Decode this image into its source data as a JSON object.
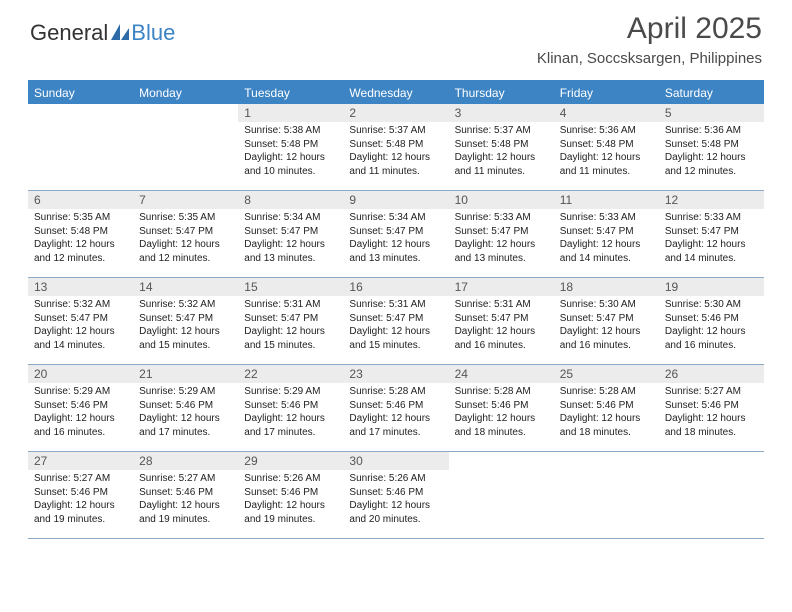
{
  "brand": {
    "part1": "General",
    "part2": "Blue"
  },
  "title": "April 2025",
  "location": "Klinan, Soccsksargen, Philippines",
  "colors": {
    "header_bg": "#3d84c4",
    "header_text": "#ffffff",
    "daynum_bg": "#ececec",
    "divider": "#8aa8c8",
    "body_text": "#222222",
    "title_text": "#4a4a4a"
  },
  "dayHeaders": [
    "Sunday",
    "Monday",
    "Tuesday",
    "Wednesday",
    "Thursday",
    "Friday",
    "Saturday"
  ],
  "weeks": [
    [
      {
        "n": "",
        "sr": "",
        "ss": "",
        "dl": ""
      },
      {
        "n": "",
        "sr": "",
        "ss": "",
        "dl": ""
      },
      {
        "n": "1",
        "sr": "Sunrise: 5:38 AM",
        "ss": "Sunset: 5:48 PM",
        "dl": "Daylight: 12 hours and 10 minutes."
      },
      {
        "n": "2",
        "sr": "Sunrise: 5:37 AM",
        "ss": "Sunset: 5:48 PM",
        "dl": "Daylight: 12 hours and 11 minutes."
      },
      {
        "n": "3",
        "sr": "Sunrise: 5:37 AM",
        "ss": "Sunset: 5:48 PM",
        "dl": "Daylight: 12 hours and 11 minutes."
      },
      {
        "n": "4",
        "sr": "Sunrise: 5:36 AM",
        "ss": "Sunset: 5:48 PM",
        "dl": "Daylight: 12 hours and 11 minutes."
      },
      {
        "n": "5",
        "sr": "Sunrise: 5:36 AM",
        "ss": "Sunset: 5:48 PM",
        "dl": "Daylight: 12 hours and 12 minutes."
      }
    ],
    [
      {
        "n": "6",
        "sr": "Sunrise: 5:35 AM",
        "ss": "Sunset: 5:48 PM",
        "dl": "Daylight: 12 hours and 12 minutes."
      },
      {
        "n": "7",
        "sr": "Sunrise: 5:35 AM",
        "ss": "Sunset: 5:47 PM",
        "dl": "Daylight: 12 hours and 12 minutes."
      },
      {
        "n": "8",
        "sr": "Sunrise: 5:34 AM",
        "ss": "Sunset: 5:47 PM",
        "dl": "Daylight: 12 hours and 13 minutes."
      },
      {
        "n": "9",
        "sr": "Sunrise: 5:34 AM",
        "ss": "Sunset: 5:47 PM",
        "dl": "Daylight: 12 hours and 13 minutes."
      },
      {
        "n": "10",
        "sr": "Sunrise: 5:33 AM",
        "ss": "Sunset: 5:47 PM",
        "dl": "Daylight: 12 hours and 13 minutes."
      },
      {
        "n": "11",
        "sr": "Sunrise: 5:33 AM",
        "ss": "Sunset: 5:47 PM",
        "dl": "Daylight: 12 hours and 14 minutes."
      },
      {
        "n": "12",
        "sr": "Sunrise: 5:33 AM",
        "ss": "Sunset: 5:47 PM",
        "dl": "Daylight: 12 hours and 14 minutes."
      }
    ],
    [
      {
        "n": "13",
        "sr": "Sunrise: 5:32 AM",
        "ss": "Sunset: 5:47 PM",
        "dl": "Daylight: 12 hours and 14 minutes."
      },
      {
        "n": "14",
        "sr": "Sunrise: 5:32 AM",
        "ss": "Sunset: 5:47 PM",
        "dl": "Daylight: 12 hours and 15 minutes."
      },
      {
        "n": "15",
        "sr": "Sunrise: 5:31 AM",
        "ss": "Sunset: 5:47 PM",
        "dl": "Daylight: 12 hours and 15 minutes."
      },
      {
        "n": "16",
        "sr": "Sunrise: 5:31 AM",
        "ss": "Sunset: 5:47 PM",
        "dl": "Daylight: 12 hours and 15 minutes."
      },
      {
        "n": "17",
        "sr": "Sunrise: 5:31 AM",
        "ss": "Sunset: 5:47 PM",
        "dl": "Daylight: 12 hours and 16 minutes."
      },
      {
        "n": "18",
        "sr": "Sunrise: 5:30 AM",
        "ss": "Sunset: 5:47 PM",
        "dl": "Daylight: 12 hours and 16 minutes."
      },
      {
        "n": "19",
        "sr": "Sunrise: 5:30 AM",
        "ss": "Sunset: 5:46 PM",
        "dl": "Daylight: 12 hours and 16 minutes."
      }
    ],
    [
      {
        "n": "20",
        "sr": "Sunrise: 5:29 AM",
        "ss": "Sunset: 5:46 PM",
        "dl": "Daylight: 12 hours and 16 minutes."
      },
      {
        "n": "21",
        "sr": "Sunrise: 5:29 AM",
        "ss": "Sunset: 5:46 PM",
        "dl": "Daylight: 12 hours and 17 minutes."
      },
      {
        "n": "22",
        "sr": "Sunrise: 5:29 AM",
        "ss": "Sunset: 5:46 PM",
        "dl": "Daylight: 12 hours and 17 minutes."
      },
      {
        "n": "23",
        "sr": "Sunrise: 5:28 AM",
        "ss": "Sunset: 5:46 PM",
        "dl": "Daylight: 12 hours and 17 minutes."
      },
      {
        "n": "24",
        "sr": "Sunrise: 5:28 AM",
        "ss": "Sunset: 5:46 PM",
        "dl": "Daylight: 12 hours and 18 minutes."
      },
      {
        "n": "25",
        "sr": "Sunrise: 5:28 AM",
        "ss": "Sunset: 5:46 PM",
        "dl": "Daylight: 12 hours and 18 minutes."
      },
      {
        "n": "26",
        "sr": "Sunrise: 5:27 AM",
        "ss": "Sunset: 5:46 PM",
        "dl": "Daylight: 12 hours and 18 minutes."
      }
    ],
    [
      {
        "n": "27",
        "sr": "Sunrise: 5:27 AM",
        "ss": "Sunset: 5:46 PM",
        "dl": "Daylight: 12 hours and 19 minutes."
      },
      {
        "n": "28",
        "sr": "Sunrise: 5:27 AM",
        "ss": "Sunset: 5:46 PM",
        "dl": "Daylight: 12 hours and 19 minutes."
      },
      {
        "n": "29",
        "sr": "Sunrise: 5:26 AM",
        "ss": "Sunset: 5:46 PM",
        "dl": "Daylight: 12 hours and 19 minutes."
      },
      {
        "n": "30",
        "sr": "Sunrise: 5:26 AM",
        "ss": "Sunset: 5:46 PM",
        "dl": "Daylight: 12 hours and 20 minutes."
      },
      {
        "n": "",
        "sr": "",
        "ss": "",
        "dl": ""
      },
      {
        "n": "",
        "sr": "",
        "ss": "",
        "dl": ""
      },
      {
        "n": "",
        "sr": "",
        "ss": "",
        "dl": ""
      }
    ]
  ]
}
